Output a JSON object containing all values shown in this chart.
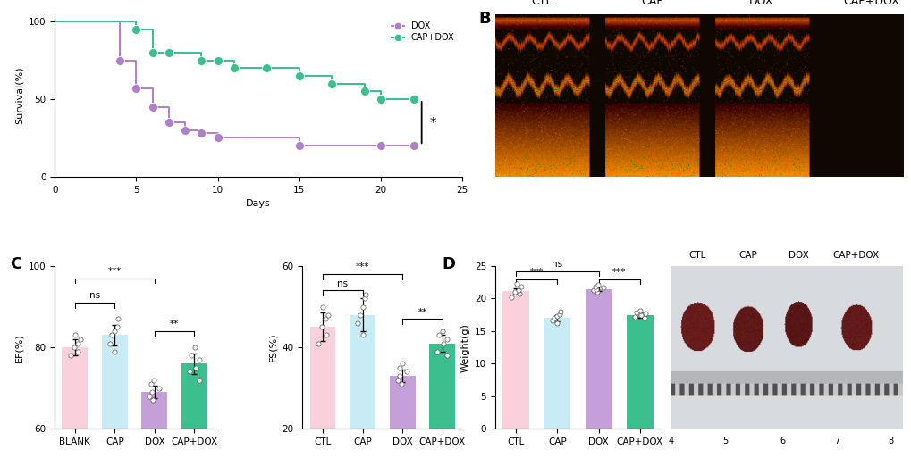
{
  "panel_A": {
    "dox_x": [
      4,
      5,
      6,
      7,
      8,
      9,
      10,
      15,
      20,
      22
    ],
    "dox_y": [
      75,
      57,
      45,
      35,
      30,
      28,
      25,
      20,
      20,
      20
    ],
    "cap_dox_x": [
      5,
      6,
      7,
      9,
      10,
      11,
      13,
      15,
      17,
      19,
      20,
      22
    ],
    "cap_dox_y": [
      95,
      80,
      80,
      75,
      75,
      70,
      70,
      65,
      60,
      55,
      50,
      50
    ],
    "dox_color": "#b07fc9",
    "cap_dox_color": "#3bbf8e",
    "xlabel": "Days",
    "ylabel": "Survival(%)",
    "xlim": [
      0,
      25
    ],
    "ylim": [
      0,
      105
    ],
    "xticks": [
      0,
      5,
      10,
      15,
      20,
      25
    ],
    "yticks": [
      0,
      50,
      100
    ]
  },
  "panel_C_EF": {
    "categories": [
      "BLANK",
      "CAP",
      "DOX",
      "CAP+DOX"
    ],
    "values": [
      80,
      83,
      69,
      76
    ],
    "errors": [
      2.0,
      2.5,
      1.5,
      2.5
    ],
    "colors": [
      "#f9d0dc",
      "#c8ecf5",
      "#c49fd8",
      "#3bbf8e"
    ],
    "ylabel": "EF(%)",
    "ylim": [
      60,
      100
    ],
    "yticks": [
      60,
      80,
      100
    ],
    "scatter_y": [
      [
        78,
        79,
        80,
        81,
        82,
        83
      ],
      [
        79,
        81,
        83,
        84,
        85,
        87
      ],
      [
        67,
        68,
        69,
        70,
        71,
        72
      ],
      [
        72,
        74,
        75,
        77,
        78,
        80
      ]
    ],
    "sig_lines": [
      {
        "x1": 0,
        "x2": 2,
        "y": 97,
        "label": "***"
      },
      {
        "x1": 0,
        "x2": 1,
        "y": 91,
        "label": "ns"
      },
      {
        "x1": 2,
        "x2": 3,
        "y": 84,
        "label": "**"
      }
    ]
  },
  "panel_C_FS": {
    "categories": [
      "CTL",
      "CAP",
      "DOX",
      "CAP+DOX"
    ],
    "values": [
      45,
      48,
      33,
      41
    ],
    "errors": [
      3.5,
      4.0,
      1.5,
      2.0
    ],
    "colors": [
      "#f9d0dc",
      "#c8ecf5",
      "#c49fd8",
      "#3bbf8e"
    ],
    "ylabel": "FS(%)",
    "ylim": [
      20,
      60
    ],
    "yticks": [
      20,
      40,
      60
    ],
    "scatter_y": [
      [
        41,
        43,
        45,
        47,
        48,
        50
      ],
      [
        43,
        46,
        48,
        50,
        52,
        53
      ],
      [
        31,
        32,
        33,
        34,
        35,
        36
      ],
      [
        38,
        39,
        41,
        42,
        43,
        44
      ]
    ],
    "sig_lines": [
      {
        "x1": 0,
        "x2": 2,
        "y": 58,
        "label": "***"
      },
      {
        "x1": 0,
        "x2": 1,
        "y": 54,
        "label": "ns"
      },
      {
        "x1": 2,
        "x2": 3,
        "y": 47,
        "label": "**"
      }
    ]
  },
  "panel_D": {
    "categories": [
      "CTL",
      "CAP",
      "DOX",
      "CAP+DOX"
    ],
    "values": [
      21.2,
      17.0,
      21.5,
      17.5
    ],
    "errors": [
      0.4,
      0.5,
      0.3,
      0.4
    ],
    "colors": [
      "#f9d0dc",
      "#c8ecf5",
      "#c49fd8",
      "#3bbf8e"
    ],
    "ylabel": "Weight(g)",
    "ylim": [
      0,
      25
    ],
    "yticks": [
      0,
      5,
      10,
      15,
      20,
      25
    ],
    "scatter_y": [
      [
        20.2,
        20.8,
        21.0,
        21.3,
        21.8,
        22.2
      ],
      [
        16.2,
        16.6,
        17.0,
        17.3,
        17.6,
        18.0
      ],
      [
        21.0,
        21.3,
        21.5,
        21.7,
        21.9,
        22.1
      ],
      [
        17.0,
        17.2,
        17.5,
        17.7,
        17.9,
        18.1
      ]
    ],
    "sig_lines": [
      {
        "x1": 0,
        "x2": 2,
        "y": 24.2,
        "label": "ns"
      },
      {
        "x1": 0,
        "x2": 1,
        "y": 23.0,
        "label": "***"
      },
      {
        "x1": 2,
        "x2": 3,
        "y": 23.0,
        "label": "***"
      }
    ]
  },
  "echo_labels": [
    "CTL",
    "CAP",
    "DOX",
    "CAP+DOX"
  ],
  "background_color": "#ffffff"
}
